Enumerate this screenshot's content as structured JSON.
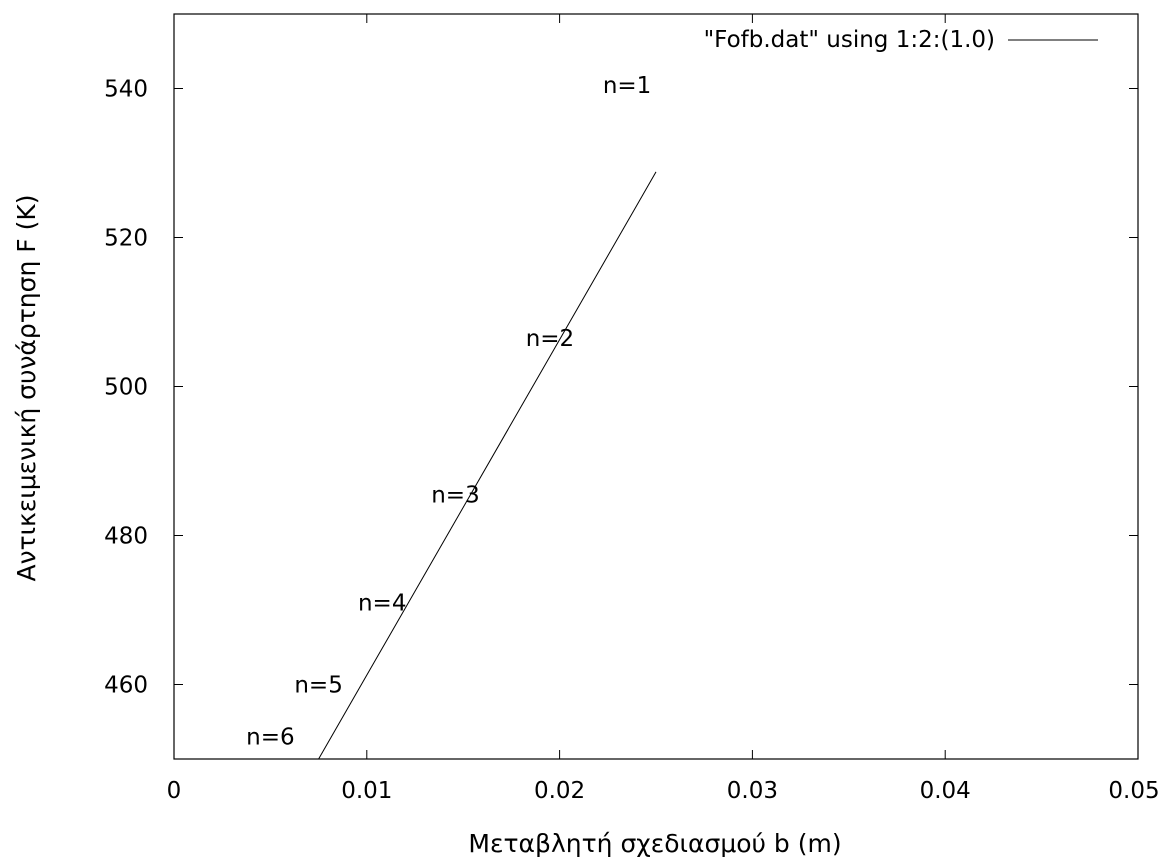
{
  "chart_data": {
    "type": "line",
    "title": "",
    "xlabel": "Μεταβλητή σχεδιασμού b (m)",
    "ylabel": "Αντικειμενική συνάρτηση F (K)",
    "xlim": [
      0,
      0.05
    ],
    "ylim": [
      450,
      550
    ],
    "x_ticks": [
      0,
      0.01,
      0.02,
      0.03,
      0.04,
      0.05
    ],
    "x_tick_labels": [
      "0",
      "0.01",
      "0.02",
      "0.03",
      "0.04",
      "0.05"
    ],
    "y_ticks": [
      460,
      480,
      500,
      520,
      540
    ],
    "y_tick_labels": [
      "460",
      "480",
      "500",
      "520",
      "540"
    ],
    "grid": false,
    "legend_position": "top-right",
    "series": [
      {
        "name": "\"Fofb.dat\" using 1:2:(1.0)",
        "color": "#000000",
        "x": [
          0.0075,
          0.025
        ],
        "y": [
          450,
          528.8
        ]
      }
    ],
    "annotations": [
      {
        "text": "n=1",
        "x": 0.0235,
        "y": 540.5
      },
      {
        "text": "n=2",
        "x": 0.0195,
        "y": 506.5
      },
      {
        "text": "n=3",
        "x": 0.0146,
        "y": 485.5
      },
      {
        "text": "n=4",
        "x": 0.0108,
        "y": 471
      },
      {
        "text": "n=5",
        "x": 0.0075,
        "y": 460
      },
      {
        "text": "n=6",
        "x": 0.005,
        "y": 453
      }
    ]
  }
}
